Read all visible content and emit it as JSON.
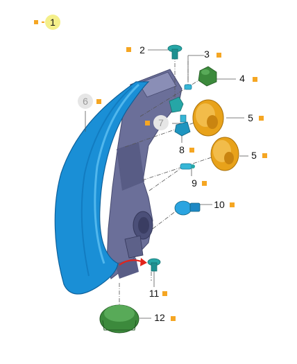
{
  "colors": {
    "marker": "#f5a623",
    "highlight": "#f4ef8a",
    "lens": "#1a8fd6",
    "housing": "#6b6f99",
    "clip": "#26a6a6",
    "cap": "#3c8a3c",
    "cover": "#e8a21a",
    "arrow": "#e2241b",
    "leader": "#555555",
    "ghost": "#bdbdbd"
  },
  "callouts": [
    {
      "id": "c1",
      "text": "1",
      "style": "highlight"
    },
    {
      "id": "c2",
      "text": "2",
      "style": "normal"
    },
    {
      "id": "c3",
      "text": "3",
      "style": "normal"
    },
    {
      "id": "c4",
      "text": "4",
      "style": "normal"
    },
    {
      "id": "c5a",
      "text": "5",
      "style": "normal"
    },
    {
      "id": "c5b",
      "text": "5",
      "style": "normal"
    },
    {
      "id": "c6",
      "text": "6",
      "style": "ghost"
    },
    {
      "id": "c7",
      "text": "7",
      "style": "ghost"
    },
    {
      "id": "c8",
      "text": "8",
      "style": "normal"
    },
    {
      "id": "c9",
      "text": "9",
      "style": "normal"
    },
    {
      "id": "c10",
      "text": "10",
      "style": "normal"
    },
    {
      "id": "c11",
      "text": "11",
      "style": "normal"
    },
    {
      "id": "c12",
      "text": "12",
      "style": "normal"
    }
  ]
}
